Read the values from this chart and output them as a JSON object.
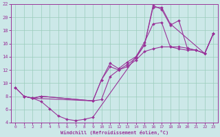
{
  "background_color": "#cce8e8",
  "grid_color": "#99ccbb",
  "line_color": "#993399",
  "marker_color": "#993399",
  "xlabel": "Windchill (Refroidissement éolien,°C)",
  "xlim": [
    -0.5,
    23.5
  ],
  "ylim": [
    4,
    22
  ],
  "xticks": [
    0,
    1,
    2,
    3,
    4,
    5,
    6,
    7,
    8,
    9,
    10,
    11,
    12,
    13,
    14,
    15,
    16,
    17,
    18,
    19,
    20,
    21,
    22,
    23
  ],
  "yticks": [
    4,
    6,
    8,
    10,
    12,
    14,
    16,
    18,
    20,
    22
  ],
  "series": [
    {
      "x": [
        0,
        1,
        2,
        3,
        4,
        5,
        6,
        7,
        8,
        9,
        15,
        16,
        17,
        18,
        22,
        23
      ],
      "y": [
        9.3,
        8.0,
        7.7,
        7.2,
        6.1,
        5.0,
        4.5,
        4.3,
        4.5,
        4.8,
        15.8,
        21.5,
        21.5,
        19.0,
        14.5,
        17.5
      ]
    },
    {
      "x": [
        1,
        2,
        3,
        9,
        10,
        11,
        12,
        13,
        14,
        15,
        16,
        17,
        18,
        19,
        20,
        21,
        22,
        23
      ],
      "y": [
        8.0,
        7.7,
        8.0,
        7.3,
        10.5,
        13.0,
        12.2,
        13.2,
        14.0,
        16.2,
        19.0,
        19.2,
        15.5,
        15.2,
        15.0,
        15.0,
        14.5,
        17.5
      ]
    },
    {
      "x": [
        1,
        2,
        3,
        9,
        10,
        11,
        12,
        13,
        14,
        15,
        16,
        17,
        18,
        19,
        20,
        21,
        22,
        23
      ],
      "y": [
        8.0,
        7.7,
        8.0,
        7.3,
        7.5,
        11.0,
        12.0,
        12.5,
        13.5,
        14.8,
        15.2,
        15.5,
        15.5,
        15.5,
        15.3,
        15.0,
        14.5,
        17.5
      ]
    },
    {
      "x": [
        0,
        1,
        2,
        9,
        10,
        11,
        12,
        13,
        14,
        15,
        16,
        17,
        18,
        19,
        20,
        21,
        22,
        23
      ],
      "y": [
        9.3,
        8.0,
        7.7,
        7.3,
        10.5,
        12.5,
        12.0,
        12.8,
        13.8,
        15.8,
        21.8,
        21.2,
        18.8,
        19.5,
        15.2,
        15.0,
        14.5,
        17.5
      ]
    }
  ]
}
